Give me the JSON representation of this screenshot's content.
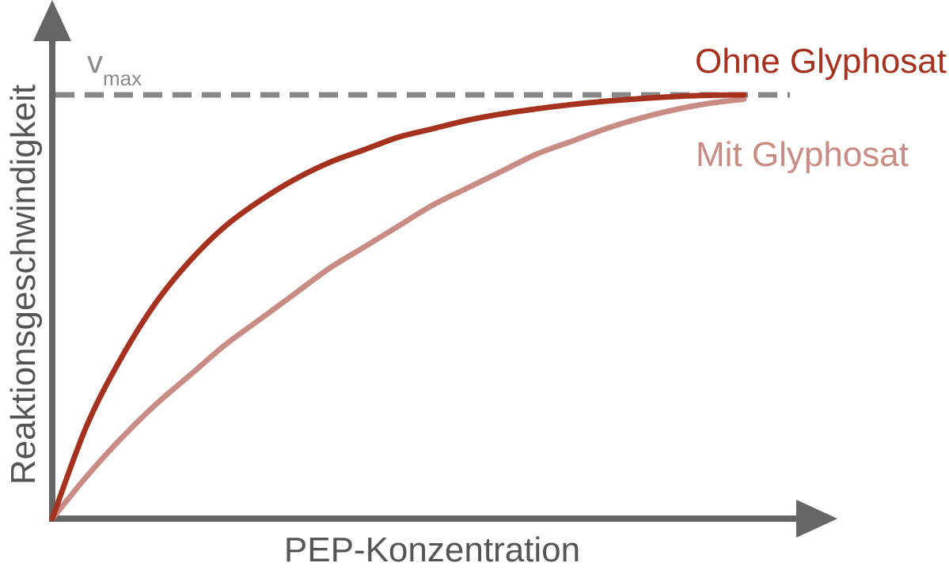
{
  "colors": {
    "axis": "#666666",
    "vmax_line": "#888888",
    "series_without": "#a5321f",
    "series_with": "#c98c84",
    "text_gray": "#555555",
    "vmax_text": "#8a8a8a"
  },
  "chart_data": {
    "type": "line",
    "xlabel": "PEP-Konzentration",
    "ylabel": "Reaktionsgeschwindigkeit",
    "xlim": [
      0,
      1
    ],
    "ylim": [
      0,
      1
    ],
    "grid": false,
    "ticks_shown": false,
    "reference_line": {
      "label_main": "v",
      "label_sub": "max",
      "y": 1.0,
      "style": "dashed"
    },
    "series": [
      {
        "name": "Ohne Glyphosat",
        "color": "#a5321f",
        "x": [
          0,
          0.05,
          0.1,
          0.15,
          0.2,
          0.25,
          0.3,
          0.35,
          0.4,
          0.45,
          0.5,
          0.55,
          0.6,
          0.65,
          0.7,
          0.75,
          0.8,
          0.85,
          0.9,
          0.95,
          1.0
        ],
        "y": [
          0,
          0.22,
          0.38,
          0.51,
          0.61,
          0.69,
          0.75,
          0.8,
          0.84,
          0.87,
          0.9,
          0.92,
          0.94,
          0.955,
          0.967,
          0.977,
          0.985,
          0.991,
          0.996,
          0.999,
          1.0
        ]
      },
      {
        "name": "Mit Glyphosat",
        "color": "#c98c84",
        "x": [
          0,
          0.05,
          0.1,
          0.15,
          0.2,
          0.25,
          0.3,
          0.35,
          0.4,
          0.45,
          0.5,
          0.55,
          0.6,
          0.65,
          0.7,
          0.75,
          0.8,
          0.85,
          0.9,
          0.95,
          1.0
        ],
        "y": [
          0,
          0.1,
          0.19,
          0.27,
          0.34,
          0.41,
          0.47,
          0.53,
          0.59,
          0.64,
          0.69,
          0.74,
          0.78,
          0.82,
          0.86,
          0.89,
          0.92,
          0.945,
          0.965,
          0.98,
          0.99
        ]
      }
    ]
  }
}
